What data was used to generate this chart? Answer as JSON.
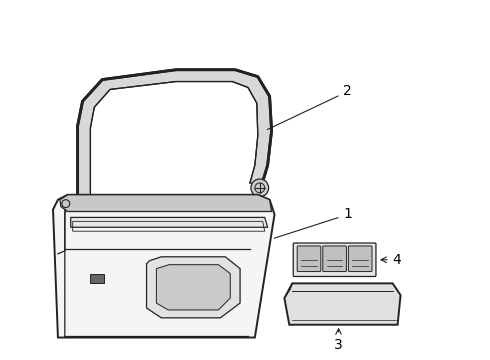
{
  "background_color": "#ffffff",
  "line_color": "#222222",
  "label_color": "#000000",
  "figsize": [
    4.9,
    3.6
  ],
  "dpi": 100,
  "panel_face": "#f5f5f5",
  "strip_face": "#e0e0e0",
  "detail_face": "#d0d0d0"
}
